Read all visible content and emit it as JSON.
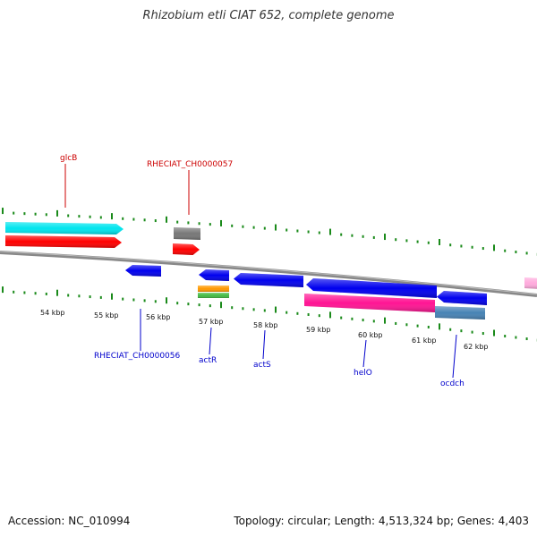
{
  "title": "Rhizobium etli CIAT 652, complete genome",
  "footer": {
    "accession": "Accession: NC_010994",
    "summary": "Topology: circular; Length: 4,513,324 bp; Genes: 4,403"
  },
  "colors": {
    "tick": "#1a8a1a",
    "top_label": "#cc0000",
    "bottom_label": "#0000cc",
    "backbone": "#888888"
  },
  "scale": {
    "ticks": [
      {
        "label": "54 kbp"
      },
      {
        "label": "55 kbp"
      },
      {
        "label": "56 kbp"
      },
      {
        "label": "57 kbp"
      },
      {
        "label": "58 kbp"
      },
      {
        "label": "59 kbp"
      },
      {
        "label": "60 kbp"
      },
      {
        "label": "61 kbp"
      },
      {
        "label": "62 kbp"
      }
    ]
  },
  "labels": {
    "top": [
      {
        "name": "glcB",
        "color": "#cc0000"
      },
      {
        "name": "RHECIAT_CH0000057",
        "color": "#cc0000"
      }
    ],
    "bottom": [
      {
        "name": "RHECIAT_CH0000056",
        "color": "#0000cc"
      },
      {
        "name": "actR",
        "color": "#0000cc"
      },
      {
        "name": "actS",
        "color": "#0000cc"
      },
      {
        "name": "helO",
        "color": "#0000cc"
      },
      {
        "name": "ocdch",
        "color": "#0000cc"
      }
    ]
  },
  "features": [
    {
      "id": "cyan-gene",
      "color": "#00e5ee",
      "strand": "forward"
    },
    {
      "id": "red-gene-left",
      "color": "#ff0000",
      "strand": "forward"
    },
    {
      "id": "gray-gene",
      "color": "#777777",
      "strand": "forward"
    },
    {
      "id": "red-gene-small",
      "color": "#ff0000",
      "strand": "forward"
    },
    {
      "id": "blue-gene-1",
      "color": "#0000ee",
      "strand": "reverse"
    },
    {
      "id": "blue-gene-2",
      "color": "#0000ee",
      "strand": "reverse"
    },
    {
      "id": "blue-gene-3",
      "color": "#0000ee",
      "strand": "reverse"
    },
    {
      "id": "blue-gene-4",
      "color": "#0000ee",
      "strand": "reverse"
    },
    {
      "id": "blue-gene-5",
      "color": "#0000ee",
      "strand": "reverse"
    },
    {
      "id": "orange-gene",
      "color": "#ff9900",
      "strand": "reverse"
    },
    {
      "id": "green-gene",
      "color": "#44bb44",
      "strand": "reverse"
    },
    {
      "id": "magenta-gene",
      "color": "#ff1493",
      "strand": "reverse"
    },
    {
      "id": "steel-gene",
      "color": "#4682b4",
      "strand": "reverse"
    },
    {
      "id": "pink-gene",
      "color": "#ffaadd",
      "strand": "forward"
    }
  ]
}
